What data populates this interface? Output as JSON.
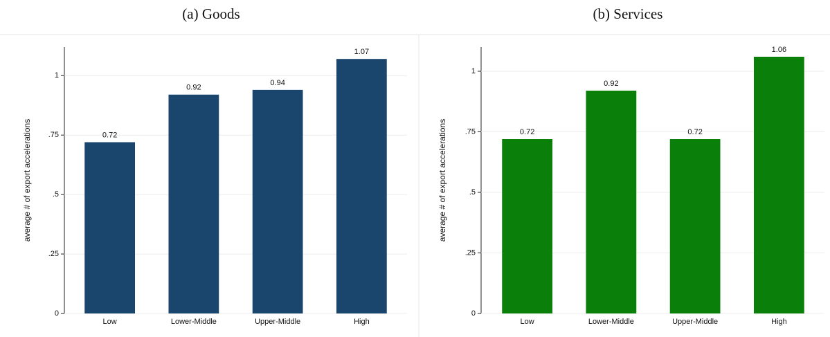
{
  "chart_data": [
    {
      "type": "bar",
      "title": "(a) Goods",
      "ylabel": "average # of export accelerations",
      "categories": [
        "Low",
        "Lower-Middle",
        "Upper-Middle",
        "High"
      ],
      "values": [
        0.72,
        0.92,
        0.94,
        1.07
      ],
      "color": "#1a466e",
      "ylim": [
        0,
        1.12
      ],
      "yticks": [
        0,
        {
          "value": 0.25,
          "label": ".25"
        },
        {
          "value": 0.5,
          "label": ".5"
        },
        {
          "value": 0.75,
          "label": ".75"
        },
        1
      ],
      "grid": true
    },
    {
      "type": "bar",
      "title": "(b) Services",
      "ylabel": "average # of export accelerations",
      "categories": [
        "Low",
        "Lower-Middle",
        "Upper-Middle",
        "High"
      ],
      "values": [
        0.72,
        0.92,
        0.72,
        1.06
      ],
      "color": "#0a7f0a",
      "ylim": [
        0,
        1.1
      ],
      "yticks": [
        0,
        {
          "value": 0.25,
          "label": ".25"
        },
        {
          "value": 0.5,
          "label": ".5"
        },
        {
          "value": 0.75,
          "label": ".75"
        },
        1
      ],
      "grid": true
    }
  ]
}
